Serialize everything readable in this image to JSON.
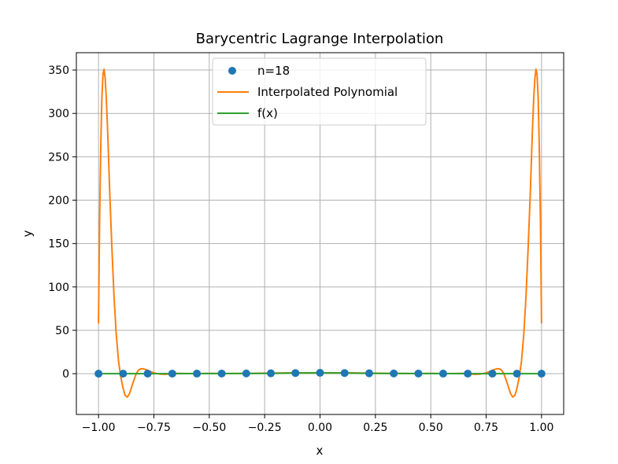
{
  "chart_data": {
    "type": "line",
    "title": "Barycentric Lagrange Interpolation",
    "xlabel": "x",
    "ylabel": "y",
    "xlim": [
      -1.1,
      1.1
    ],
    "ylim": [
      -47,
      370
    ],
    "grid": true,
    "legend_position": "top-center",
    "x_ticks": [
      -1.0,
      -0.75,
      -0.5,
      -0.25,
      0.0,
      0.25,
      0.5,
      0.75,
      1.0
    ],
    "x_tick_labels": [
      "−1.00",
      "−0.75",
      "−0.50",
      "−0.25",
      "0.00",
      "0.25",
      "0.50",
      "0.75",
      "1.00"
    ],
    "y_ticks": [
      0,
      50,
      100,
      150,
      200,
      250,
      300,
      350
    ],
    "y_tick_labels": [
      "0",
      "50",
      "100",
      "150",
      "200",
      "250",
      "300",
      "350"
    ],
    "series": [
      {
        "name": "n=18",
        "kind": "scatter",
        "color": "#1f77b4",
        "x": [
          -1.0,
          -0.889,
          -0.778,
          -0.667,
          -0.556,
          -0.444,
          -0.333,
          -0.222,
          -0.111,
          0.0,
          0.111,
          0.222,
          0.333,
          0.444,
          0.556,
          0.667,
          0.778,
          0.889,
          1.0
        ],
        "y": [
          0.04,
          0.05,
          0.06,
          0.08,
          0.11,
          0.17,
          0.26,
          0.45,
          0.76,
          1.0,
          0.76,
          0.45,
          0.26,
          0.17,
          0.11,
          0.08,
          0.06,
          0.05,
          0.04
        ]
      },
      {
        "name": "Interpolated Polynomial",
        "kind": "line",
        "color": "#ff7f0e",
        "x": [
          -1.0,
          -0.995,
          -0.99,
          -0.985,
          -0.98,
          -0.975,
          -0.97,
          -0.965,
          -0.96,
          -0.955,
          -0.95,
          -0.94,
          -0.93,
          -0.92,
          -0.91,
          -0.9,
          -0.889,
          -0.88,
          -0.87,
          -0.86,
          -0.85,
          -0.84,
          -0.83,
          -0.82,
          -0.81,
          -0.8,
          -0.78,
          -0.76,
          -0.74,
          -0.72,
          -0.7,
          -0.68,
          -0.667,
          -0.64,
          -0.6,
          -0.556,
          -0.5,
          -0.444,
          -0.4,
          -0.333,
          -0.25,
          -0.15,
          0.0,
          0.15,
          0.25,
          0.333,
          0.4,
          0.444,
          0.5,
          0.556,
          0.6,
          0.64,
          0.667,
          0.68,
          0.7,
          0.72,
          0.74,
          0.76,
          0.78,
          0.8,
          0.81,
          0.82,
          0.83,
          0.84,
          0.85,
          0.86,
          0.87,
          0.88,
          0.889,
          0.9,
          0.91,
          0.92,
          0.93,
          0.94,
          0.95,
          0.955,
          0.96,
          0.965,
          0.97,
          0.975,
          0.98,
          0.985,
          0.99,
          0.995,
          1.0
        ],
        "y": [
          58,
          175,
          262,
          318,
          345,
          351,
          340,
          318,
          288,
          252,
          213,
          148,
          90,
          46,
          15,
          -3,
          -17,
          -25,
          -27,
          -23,
          -15,
          -7,
          0,
          4,
          5.5,
          5.8,
          4.2,
          1.9,
          0.3,
          -0.6,
          -0.8,
          -0.4,
          0.08,
          0.3,
          0.15,
          0.11,
          0.3,
          0.17,
          0.2,
          0.26,
          0.6,
          0.95,
          1.0,
          0.95,
          0.6,
          0.26,
          0.2,
          0.17,
          0.3,
          0.11,
          0.15,
          0.3,
          0.08,
          -0.4,
          -0.8,
          -0.6,
          0.3,
          1.9,
          4.2,
          5.8,
          5.5,
          4,
          0,
          -7,
          -15,
          -23,
          -27,
          -25,
          -17,
          -3,
          15,
          46,
          90,
          148,
          213,
          252,
          288,
          318,
          340,
          351,
          345,
          318,
          262,
          175,
          58
        ]
      },
      {
        "name": "f(x)",
        "kind": "line",
        "color": "#2ca02c",
        "x": [
          -1.0,
          -0.889,
          -0.778,
          -0.667,
          -0.556,
          -0.444,
          -0.333,
          -0.222,
          -0.111,
          0.0,
          0.111,
          0.222,
          0.333,
          0.444,
          0.556,
          0.667,
          0.778,
          0.889,
          1.0
        ],
        "y": [
          0.04,
          0.05,
          0.06,
          0.08,
          0.11,
          0.17,
          0.26,
          0.45,
          0.76,
          1.0,
          0.76,
          0.45,
          0.26,
          0.17,
          0.11,
          0.08,
          0.06,
          0.05,
          0.04
        ]
      }
    ]
  }
}
